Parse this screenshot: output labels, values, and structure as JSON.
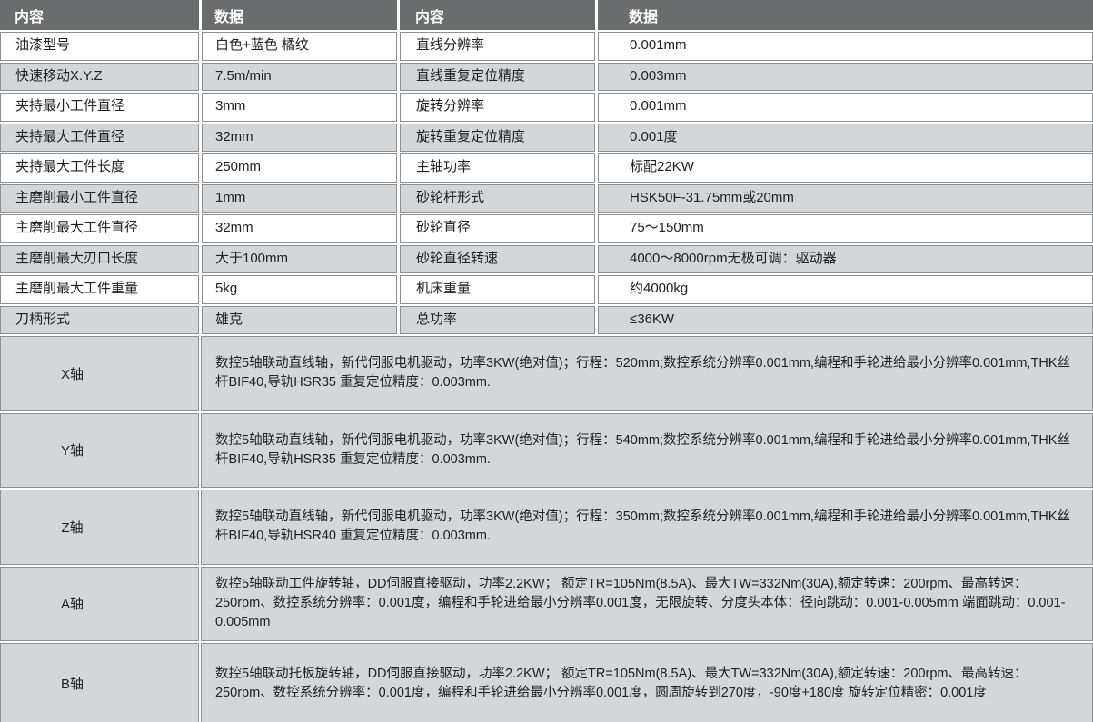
{
  "colors": {
    "header_bg": "#6b6c6e",
    "header_text": "#ffffff",
    "row_alt_bg": "#d4d7d9",
    "cell_border": "#8e9194",
    "text": "#212121"
  },
  "table": {
    "headers": [
      "内容",
      "数据",
      "内容",
      "数据"
    ],
    "spec_rows": [
      {
        "param1": "油漆型号",
        "value1": "白色+蓝色 橘纹",
        "param2": "直线分辨率",
        "value2": "0.001mm"
      },
      {
        "param1": "快速移动X.Y.Z",
        "value1": "7.5m/min",
        "param2": "直线重复定位精度",
        "value2": "0.003mm"
      },
      {
        "param1": "夹持最小工件直径",
        "value1": "3mm",
        "param2": "旋转分辨率",
        "value2": "0.001mm"
      },
      {
        "param1": "夹持最大工件直径",
        "value1": "32mm",
        "param2": "旋转重复定位精度",
        "value2": "0.001度"
      },
      {
        "param1": "夹持最大工件长度",
        "value1": "250mm",
        "param2": "主轴功率",
        "value2": "标配22KW"
      },
      {
        "param1": "主磨削最小工件直径",
        "value1": "1mm",
        "param2": "砂轮杆形式",
        "value2": "HSK50F-31.75mm或20mm"
      },
      {
        "param1": "主磨削最大工件直径",
        "value1": "32mm",
        "param2": "砂轮直径",
        "value2": "75～150mm"
      },
      {
        "param1": "主磨削最大刃口长度",
        "value1": "大于100mm",
        "param2": "砂轮直径转速",
        "value2": "4000～8000rpm无极可调：驱动器"
      },
      {
        "param1": "主磨削最大工件重量",
        "value1": "5kg",
        "param2": "机床重量",
        "value2": "约4000kg"
      },
      {
        "param1": "刀柄形式",
        "value1": "雄克",
        "param2": "总功率",
        "value2": "≤36KW"
      }
    ],
    "axis_rows": [
      {
        "label": "X轴",
        "desc": "数控5轴联动直线轴，新代伺服电机驱动，功率3KW(绝对值)；行程：520mm;数控系统分辨率0.001mm,编程和手轮进给最小分辨率0.001mm,THK丝杆BIF40,导轨HSR35 重复定位精度：0.003mm."
      },
      {
        "label": "Y轴",
        "desc": "数控5轴联动直线轴，新代伺服电机驱动，功率3KW(绝对值)；行程：540mm;数控系统分辨率0.001mm,编程和手轮进给最小分辨率0.001mm,THK丝杆BIF40,导轨HSR35 重复定位精度：0.003mm."
      },
      {
        "label": "Z轴",
        "desc": "数控5轴联动直线轴，新代伺服电机驱动，功率3KW(绝对值)；行程：350mm;数控系统分辨率0.001mm,编程和手轮进给最小分辨率0.001mm,THK丝杆BIF40,导轨HSR40 重复定位精度：0.003mm."
      },
      {
        "label": "A轴",
        "desc": "数控5轴联动工件旋转轴，DD伺服直接驱动，功率2.2KW； 额定TR=105Nm(8.5A)、最大TW=332Nm(30A),额定转速：200rpm、最高转速：250rpm、数控系统分辨率：0.001度，编程和手轮进给最小分辨率0.001度，无限旋转、分度头本体：径向跳动：0.001-0.005mm 端面跳动：0.001-0.005mm"
      },
      {
        "label": "B轴",
        "desc": "数控5轴联动托板旋转轴，DD伺服直接驱动，功率2.2KW； 额定TR=105Nm(8.5A)、最大TW=332Nm(30A),额定转速：200rpm、最高转速：250rpm、数控系统分辨率：0.001度，编程和手轮进给最小分辨率0.001度，圆周旋转到270度，-90度+180度 旋转定位精密：0.001度"
      }
    ]
  }
}
